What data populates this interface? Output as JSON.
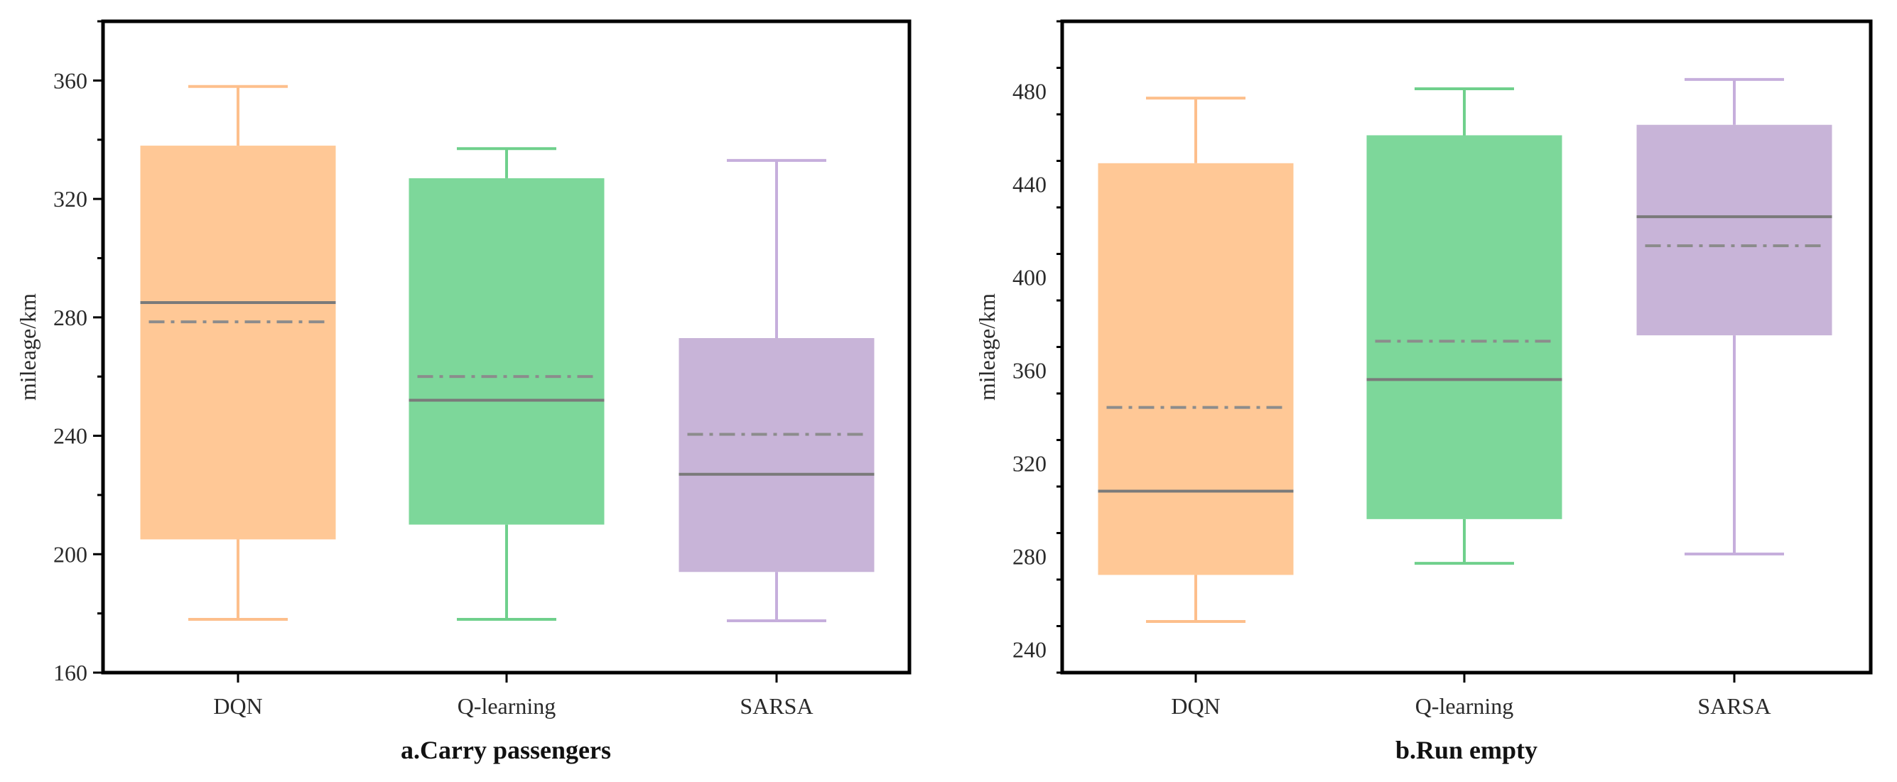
{
  "chart_data": [
    {
      "type": "box",
      "title": "a.Carry passengers",
      "xlabel": "",
      "ylabel": "mileage/km",
      "ylim": [
        160,
        380
      ],
      "yticks": [
        160,
        200,
        240,
        280,
        320,
        360
      ],
      "categories": [
        "DQN",
        "Q-learning",
        "SARSA"
      ],
      "boxes": [
        {
          "name": "DQN",
          "min": 178,
          "q1": 205,
          "median": 285,
          "mean": 278.5,
          "q3": 338,
          "max": 358,
          "color": "#FFC896",
          "whisker_color": "#FDBF8C"
        },
        {
          "name": "Q-learning",
          "min": 178,
          "q1": 210,
          "median": 252,
          "mean": 260,
          "q3": 327,
          "max": 337,
          "color": "#7DD79A",
          "whisker_color": "#6FD08C"
        },
        {
          "name": "SARSA",
          "min": 177.5,
          "q1": 194,
          "median": 227,
          "mean": 240.5,
          "q3": 273,
          "max": 333,
          "color": "#C8B4D8",
          "whisker_color": "#C6AEDC"
        }
      ]
    },
    {
      "type": "box",
      "title": "b.Run empty",
      "xlabel": "",
      "ylabel": "mileage/km",
      "ylim": [
        230,
        510
      ],
      "yticks": [
        240,
        280,
        320,
        360,
        400,
        440,
        480
      ],
      "categories": [
        "DQN",
        "Q-learning",
        "SARSA"
      ],
      "boxes": [
        {
          "name": "DQN",
          "min": 252,
          "q1": 272,
          "median": 308,
          "mean": 344,
          "q3": 449,
          "max": 477,
          "color": "#FFC896",
          "whisker_color": "#FDBF8C"
        },
        {
          "name": "Q-learning",
          "min": 277,
          "q1": 296,
          "median": 356,
          "mean": 372.5,
          "q3": 461,
          "max": 481,
          "color": "#7DD79A",
          "whisker_color": "#6FD08C"
        },
        {
          "name": "SARSA",
          "min": 281,
          "q1": 375,
          "median": 426,
          "mean": 413.5,
          "q3": 465.5,
          "max": 485,
          "color": "#C8B4D8",
          "whisker_color": "#C6AEDC"
        }
      ]
    }
  ]
}
